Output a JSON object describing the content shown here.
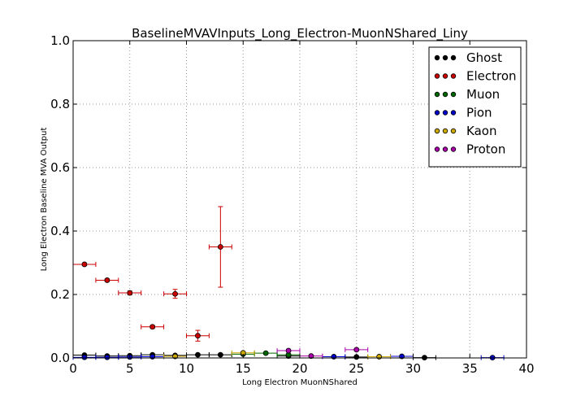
{
  "chart_data": {
    "type": "scatter",
    "title": "BaselineMVAVInputs_Long_Electron-MuonNShared_Liny",
    "xlabel": "Long Electron MuonNShared",
    "ylabel": "Long Electron Baseline MVA Output",
    "xlim": [
      0,
      40
    ],
    "ylim": [
      0,
      1.0
    ],
    "x_ticks": [
      "0",
      "5",
      "10",
      "15",
      "20",
      "25",
      "30",
      "35",
      "40"
    ],
    "y_ticks": [
      "0.0",
      "0.2",
      "0.4",
      "0.6",
      "0.8",
      "1.0"
    ],
    "grid": true,
    "legend_position": "top-right",
    "series": [
      {
        "name": "Ghost",
        "color": "#000000",
        "points": [
          {
            "x": 1,
            "y": 0.009,
            "xerr": 1,
            "yerr": 0.002
          },
          {
            "x": 3,
            "y": 0.006,
            "xerr": 1,
            "yerr": 0.002
          },
          {
            "x": 5,
            "y": 0.007,
            "xerr": 1,
            "yerr": 0.002
          },
          {
            "x": 7,
            "y": 0.01,
            "xerr": 1,
            "yerr": 0.002
          },
          {
            "x": 9,
            "y": 0.008,
            "xerr": 1,
            "yerr": 0.002
          },
          {
            "x": 11,
            "y": 0.01,
            "xerr": 1,
            "yerr": 0.002
          },
          {
            "x": 13,
            "y": 0.01,
            "xerr": 1,
            "yerr": 0.003
          },
          {
            "x": 19,
            "y": 0.006,
            "xerr": 1,
            "yerr": 0.003
          },
          {
            "x": 25,
            "y": 0.003,
            "xerr": 1,
            "yerr": 0.002
          },
          {
            "x": 31,
            "y": 0.001,
            "xerr": 1,
            "yerr": 0.001
          }
        ]
      },
      {
        "name": "Electron",
        "color": "#cc0000",
        "points": [
          {
            "x": 1,
            "y": 0.295,
            "xerr": 1,
            "yerr": 0.004
          },
          {
            "x": 3,
            "y": 0.245,
            "xerr": 1,
            "yerr": 0.004
          },
          {
            "x": 5,
            "y": 0.205,
            "xerr": 1,
            "yerr": 0.006
          },
          {
            "x": 7,
            "y": 0.098,
            "xerr": 1,
            "yerr": 0.005
          },
          {
            "x": 9,
            "y": 0.202,
            "xerr": 1,
            "yerr": 0.014
          },
          {
            "x": 11,
            "y": 0.07,
            "xerr": 1,
            "yerr": 0.017
          },
          {
            "x": 13,
            "y": 0.35,
            "xerr": 1,
            "yerr": 0.127
          }
        ]
      },
      {
        "name": "Muon",
        "color": "#006600",
        "points": [
          {
            "x": 15,
            "y": 0.012,
            "xerr": 1,
            "yerr": 0.002
          },
          {
            "x": 17,
            "y": 0.015,
            "xerr": 1,
            "yerr": 0.002
          },
          {
            "x": 19,
            "y": 0.01,
            "xerr": 1,
            "yerr": 0.002
          }
        ]
      },
      {
        "name": "Pion",
        "color": "#0000cc",
        "points": [
          {
            "x": 1,
            "y": 0.002,
            "xerr": 1,
            "yerr": 0.001
          },
          {
            "x": 3,
            "y": 0.002,
            "xerr": 1,
            "yerr": 0.001
          },
          {
            "x": 5,
            "y": 0.003,
            "xerr": 1,
            "yerr": 0.001
          },
          {
            "x": 7,
            "y": 0.004,
            "xerr": 1,
            "yerr": 0.001
          },
          {
            "x": 23,
            "y": 0.004,
            "xerr": 1,
            "yerr": 0.002
          },
          {
            "x": 29,
            "y": 0.005,
            "xerr": 1,
            "yerr": 0.002
          },
          {
            "x": 37,
            "y": 0.001,
            "xerr": 1,
            "yerr": 0.001
          }
        ]
      },
      {
        "name": "Kaon",
        "color": "#ccaa00",
        "points": [
          {
            "x": 9,
            "y": 0.005,
            "xerr": 1,
            "yerr": 0.002
          },
          {
            "x": 15,
            "y": 0.016,
            "xerr": 1,
            "yerr": 0.003
          },
          {
            "x": 27,
            "y": 0.004,
            "xerr": 1,
            "yerr": 0.002
          }
        ]
      },
      {
        "name": "Proton",
        "color": "#aa00aa",
        "points": [
          {
            "x": 19,
            "y": 0.023,
            "xerr": 1,
            "yerr": 0.004
          },
          {
            "x": 21,
            "y": 0.006,
            "xerr": 1,
            "yerr": 0.002
          },
          {
            "x": 25,
            "y": 0.026,
            "xerr": 1,
            "yerr": 0.004
          }
        ]
      }
    ]
  }
}
